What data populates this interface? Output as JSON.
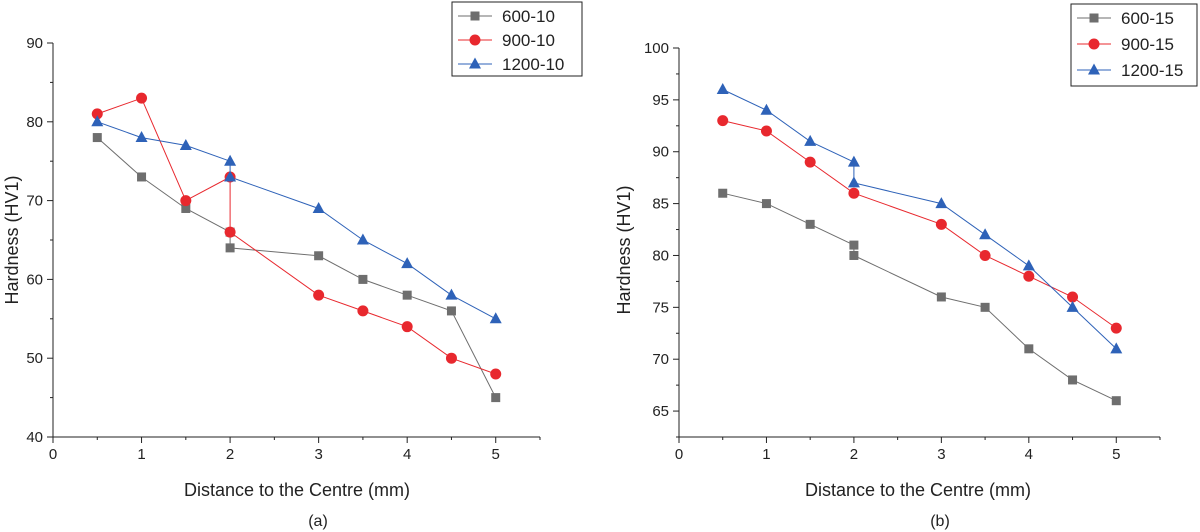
{
  "figure": {
    "captions": [
      "(a)",
      "(b)"
    ]
  },
  "chart_data": [
    {
      "type": "line",
      "title": "",
      "caption": "(a)",
      "xlabel": "Distance to the Centre (mm)",
      "ylabel": "Hardness (HV1)",
      "xlim": [
        0,
        5.5
      ],
      "ylim": [
        40,
        90
      ],
      "xticks": [
        0,
        1,
        2,
        3,
        4,
        5
      ],
      "yticks": [
        40,
        50,
        60,
        70,
        80,
        90
      ],
      "grid": false,
      "legend_position": "top-right",
      "series": [
        {
          "name": "600-10",
          "color": "#6e6e6e",
          "marker": "square",
          "x": [
            0.5,
            1,
            1.5,
            2,
            2,
            3,
            3.5,
            4,
            4.5,
            5
          ],
          "y": [
            78,
            73,
            69,
            66,
            64,
            63,
            60,
            58,
            56,
            45
          ]
        },
        {
          "name": "900-10",
          "color": "#e8282e",
          "marker": "circle",
          "x": [
            0.5,
            1,
            1.5,
            2,
            2,
            3,
            3.5,
            4,
            4.5,
            5
          ],
          "y": [
            81,
            83,
            70,
            73,
            66,
            58,
            56,
            54,
            50,
            48
          ]
        },
        {
          "name": "1200-10",
          "color": "#2e62b8",
          "marker": "triangle",
          "x": [
            0.5,
            1,
            1.5,
            2,
            2,
            3,
            3.5,
            4,
            4.5,
            5
          ],
          "y": [
            80,
            78,
            77,
            75,
            73,
            69,
            65,
            62,
            58,
            55
          ]
        }
      ]
    },
    {
      "type": "line",
      "title": "",
      "caption": "(b)",
      "xlabel": "Distance to the Centre (mm)",
      "ylabel": "Hardness (HV1)",
      "xlim": [
        0,
        5.5
      ],
      "ylim": [
        62.5,
        100
      ],
      "xticks": [
        0,
        1,
        2,
        3,
        4,
        5
      ],
      "yticks": [
        65,
        70,
        75,
        80,
        85,
        90,
        95,
        100
      ],
      "grid": false,
      "legend_position": "top-right",
      "series": [
        {
          "name": "600-15",
          "color": "#6e6e6e",
          "marker": "square",
          "x": [
            0.5,
            1,
            1.5,
            2,
            2,
            3,
            3.5,
            4,
            4.5,
            5
          ],
          "y": [
            86,
            85,
            83,
            81,
            80,
            76,
            75,
            71,
            68,
            66
          ]
        },
        {
          "name": "900-15",
          "color": "#e8282e",
          "marker": "circle",
          "x": [
            0.5,
            1,
            1.5,
            2,
            3,
            3.5,
            4,
            4.5,
            5
          ],
          "y": [
            93,
            92,
            89,
            86,
            83,
            80,
            78,
            76,
            73
          ]
        },
        {
          "name": "1200-15",
          "color": "#2e62b8",
          "marker": "triangle",
          "x": [
            0.5,
            1,
            1.5,
            2,
            2,
            3,
            3.5,
            4,
            4.5,
            5
          ],
          "y": [
            96,
            94,
            91,
            89,
            87,
            85,
            82,
            79,
            75,
            71
          ]
        }
      ]
    }
  ]
}
